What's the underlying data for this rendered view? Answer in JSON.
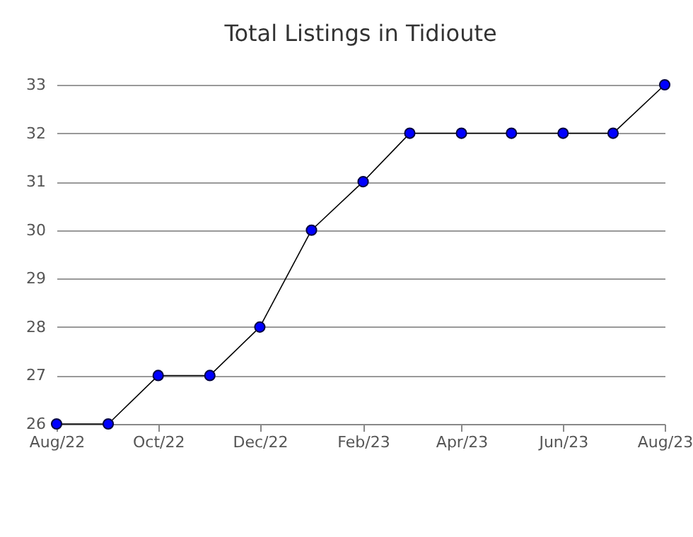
{
  "chart_data": {
    "type": "line",
    "title": "Total Listings in Tidioute",
    "x": [
      "2022-08",
      "2022-09",
      "2022-10",
      "2022-11",
      "2022-12",
      "2023-01",
      "2023-02",
      "2023-03",
      "2023-04",
      "2023-05",
      "2023-06",
      "2023-07",
      "2023-08"
    ],
    "series": [
      {
        "color": "#0000ff",
        "values": [
          26,
          26,
          27,
          27,
          28,
          30,
          31,
          32,
          32,
          32,
          32,
          32,
          33
        ]
      }
    ],
    "xlim": [
      "2022-08",
      "2023-08"
    ],
    "xticks": [
      {
        "value": "2022-08",
        "label": "Aug/22"
      },
      {
        "value": "2022-10",
        "label": "Oct/22"
      },
      {
        "value": "2022-12",
        "label": "Dec/22"
      },
      {
        "value": "2023-02",
        "label": "Feb/23"
      },
      {
        "value": "2023-04",
        "label": "Apr/23"
      },
      {
        "value": "2023-06",
        "label": "Jun/23"
      },
      {
        "value": "2023-08",
        "label": "Aug/23"
      }
    ],
    "ylim": [
      26,
      33
    ],
    "yticks": [
      26,
      27,
      28,
      29,
      30,
      31,
      32,
      33
    ],
    "grid": "y",
    "marker": "circle",
    "line_style": "solid"
  }
}
